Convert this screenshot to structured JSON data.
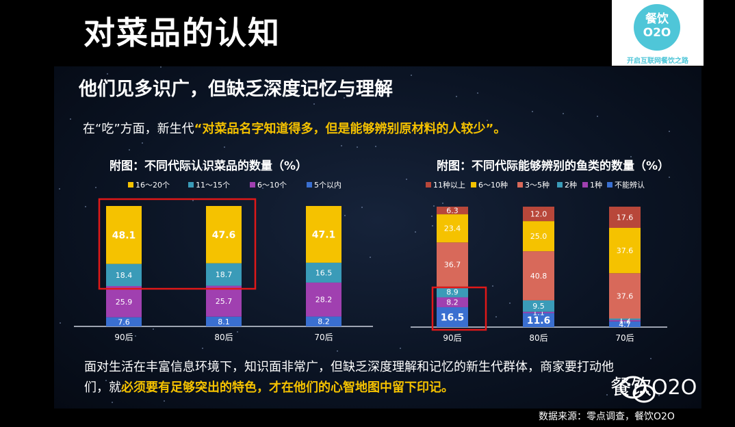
{
  "slide": {
    "title": "对菜品的认知",
    "subtitle": "他们见多识广，但缺乏深度记忆与理解",
    "intro_prefix": "在“吃”方面，新生代",
    "intro_highlight": "“对菜品名字知道得多，但是能够辨别原材料的人较少”。",
    "footer_line1": "面对生活在丰富信息环境下，知识面非常广，但缺乏深度理解和记忆的新生代群体，商家要打动他",
    "footer_line2_prefix": "们，就",
    "footer_line2_highlight": "必须要有足够突出的特色，才在他们的心智地图中留下印记。",
    "source": "数据来源：零点调查，餐饮O2O"
  },
  "logo": {
    "line1": "餐饮",
    "line2": "O2O",
    "slogan": "开启互联网餐饮之路",
    "color": "#4fc6d8"
  },
  "watermark": {
    "text": "餐饮O2O",
    "icon": "wechat-icon"
  },
  "chart_data": [
    {
      "type": "bar",
      "stacked": true,
      "title": "附图：不同代际认识菜品的数量（%）",
      "categories": [
        "90后",
        "80后",
        "70后"
      ],
      "series": [
        {
          "name": "16～20个",
          "color": "#f5c200",
          "values": [
            48.1,
            47.6,
            47.1
          ]
        },
        {
          "name": "11～15个",
          "color": "#3a9bb8",
          "values": [
            18.4,
            18.7,
            16.5
          ]
        },
        {
          "name": "6～10个",
          "color": "#a040b0",
          "values": [
            25.9,
            25.7,
            28.2
          ]
        },
        {
          "name": "5个以内",
          "color": "#3a6fd0",
          "values": [
            7.6,
            8.1,
            8.2
          ]
        }
      ],
      "stack_order_bottom_to_top": [
        "5个以内",
        "6～10个",
        "11～15个",
        "16～20个"
      ],
      "legend": "top",
      "highlight": "red box around the top two segments of 90后 and 80后"
    },
    {
      "type": "bar",
      "stacked": true,
      "title": "附图：不同代际能够辨别的鱼类的数量（%）",
      "categories": [
        "90后",
        "80后",
        "70后"
      ],
      "series": [
        {
          "name": "11种以上",
          "color": "#b8473a",
          "values": [
            6.3,
            12.0,
            17.6
          ]
        },
        {
          "name": "6～10种",
          "color": "#f5c200",
          "values": [
            23.4,
            25.0,
            37.6
          ]
        },
        {
          "name": "3～5种",
          "color": "#d8695a",
          "values": [
            36.7,
            40.8,
            37.6
          ]
        },
        {
          "name": "2种",
          "color": "#3a9bb8",
          "values": [
            8.9,
            9.5,
            1.2
          ]
        },
        {
          "name": "1种",
          "color": "#a040b0",
          "values": [
            8.2,
            1.1,
            1.2
          ]
        },
        {
          "name": "不能辨认",
          "color": "#3a6fd0",
          "values": [
            16.5,
            11.6,
            4.7
          ]
        }
      ],
      "stack_order_bottom_to_top": [
        "不能辨认",
        "1种",
        "2种",
        "3～5种",
        "6～10种",
        "11种以上"
      ],
      "legend": "top",
      "highlight": "red box around the bottom three segments of 90后"
    }
  ]
}
